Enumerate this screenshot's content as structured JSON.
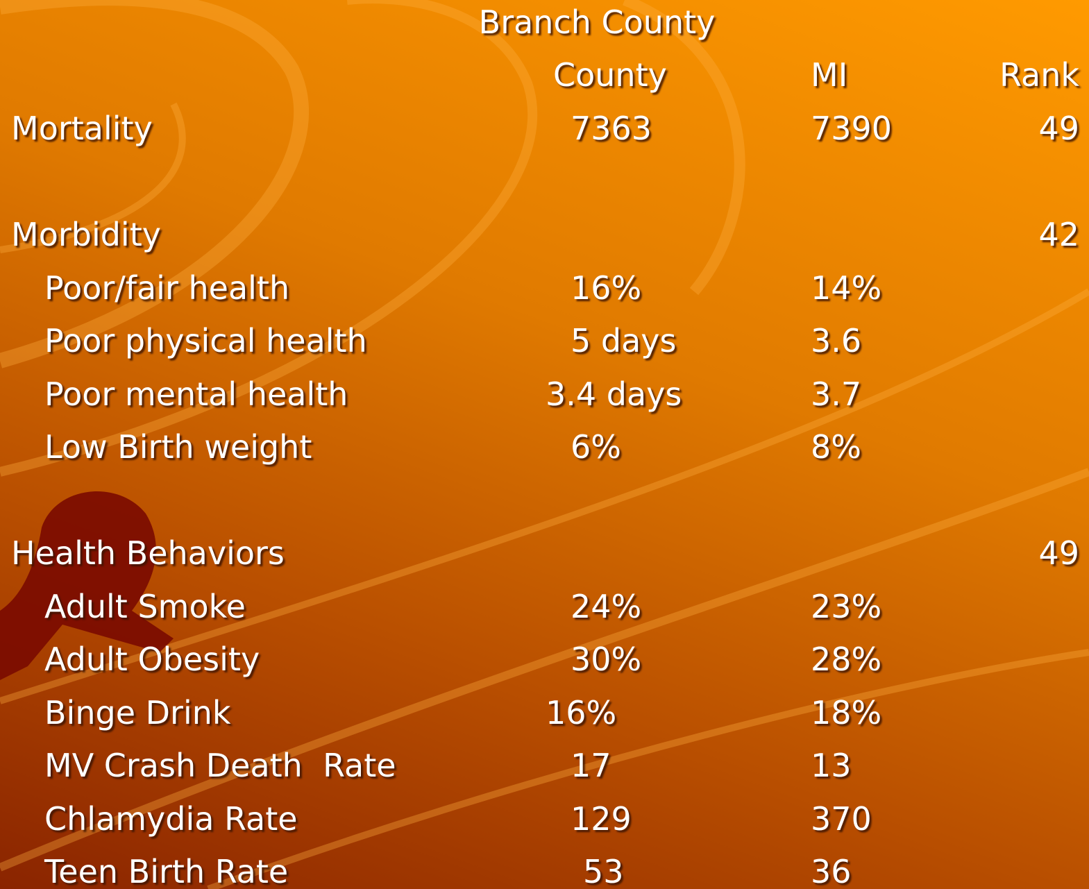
{
  "title": "Branch County",
  "header": {
    "county": "County",
    "mi": "MI",
    "rank": "Rank"
  },
  "sections": [
    {
      "label": "Mortality",
      "county": "7363",
      "mi": "7390",
      "rank": "49"
    },
    {
      "label": "Morbidity",
      "rank": "42",
      "rows": [
        {
          "label": "Poor/fair health",
          "county": "16%",
          "mi": "14%"
        },
        {
          "label": "Poor physical health",
          "county": "5 days",
          "mi": "3.6"
        },
        {
          "label": "Poor mental health",
          "county": "3.4 days",
          "mi": "3.7"
        },
        {
          "label": "Low Birth weight",
          "county": "6%",
          "mi": "8%"
        }
      ]
    },
    {
      "label": "Health Behaviors",
      "rank": "49",
      "rows": [
        {
          "label": "Adult Smoke",
          "county": "24%",
          "mi": "23%"
        },
        {
          "label": "Adult Obesity",
          "county": "30%",
          "mi": "28%"
        },
        {
          "label": "Binge Drink",
          "county": "16%",
          "mi": "18%"
        },
        {
          "label": "MV Crash Death  Rate",
          "county": "17",
          "mi": "13"
        },
        {
          "label": "Chlamydia Rate",
          "county": "129",
          "mi": "370"
        },
        {
          "label": "Teen Birth Rate",
          "county": "53",
          "mi": "36"
        }
      ]
    }
  ]
}
